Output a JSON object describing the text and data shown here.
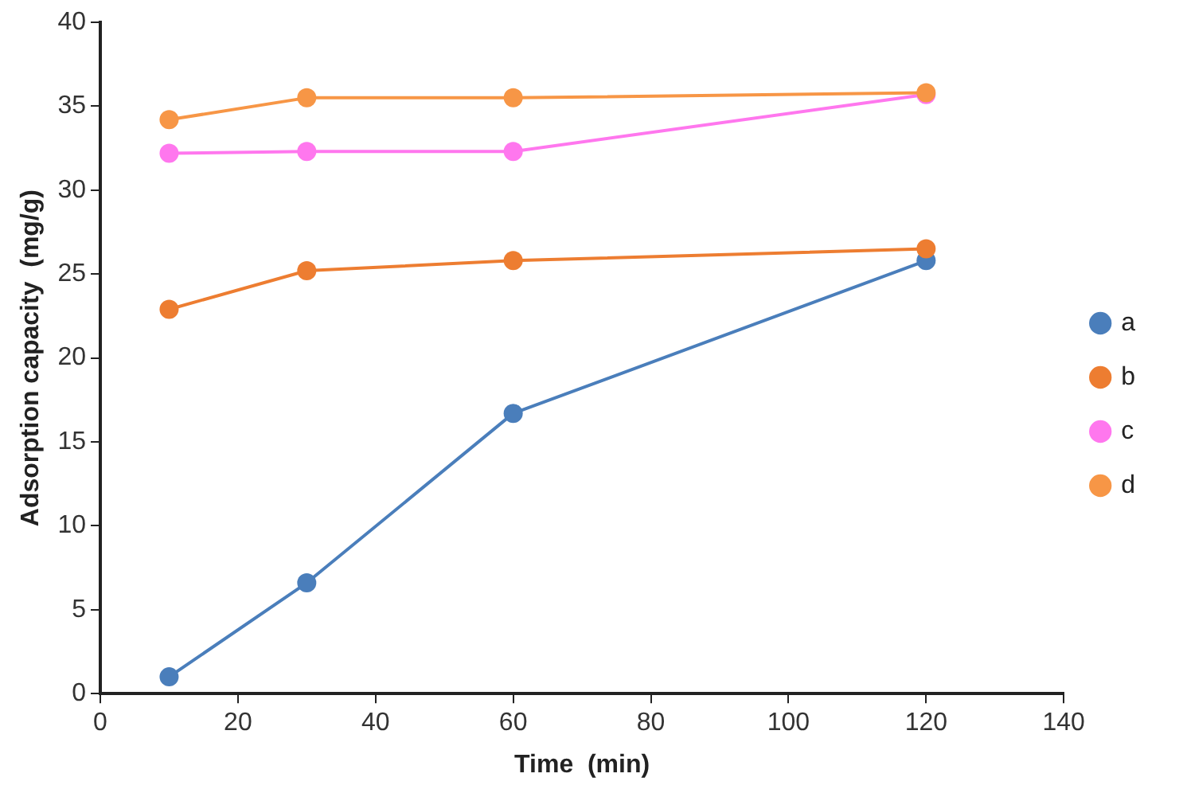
{
  "chart_data": {
    "type": "line",
    "xlabel": "Time  (min)",
    "ylabel": "Adsorption capacity  (mg/g)",
    "x": [
      10,
      30,
      60,
      120
    ],
    "series": [
      {
        "name": "a",
        "color": "#4a7ebb",
        "values": [
          1.0,
          6.6,
          16.7,
          25.8
        ]
      },
      {
        "name": "b",
        "color": "#ed7d31",
        "values": [
          22.9,
          25.2,
          25.8,
          26.5
        ]
      },
      {
        "name": "c",
        "color": "#ff77ee",
        "values": [
          32.2,
          32.3,
          32.3,
          35.7
        ]
      },
      {
        "name": "d",
        "color": "#f79646",
        "values": [
          34.2,
          35.5,
          35.5,
          35.8
        ]
      }
    ],
    "xlim": [
      0,
      140
    ],
    "xticks": [
      0,
      20,
      40,
      60,
      80,
      100,
      120,
      140
    ],
    "ylim": [
      0,
      40
    ],
    "yticks": [
      0,
      5,
      10,
      15,
      20,
      25,
      30,
      35,
      40
    ],
    "grid": false,
    "legend": "right",
    "marker": "circle",
    "line_style": "solid"
  }
}
